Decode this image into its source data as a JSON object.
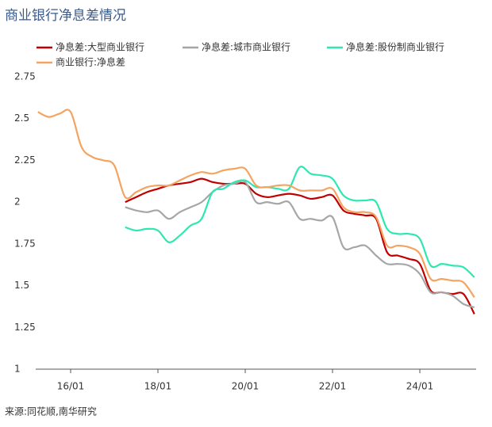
{
  "chart_data": {
    "type": "line",
    "title": "商业银行净息差情况",
    "source": "来源:同花顺,南华研究",
    "x": [
      2015.25,
      2015.5,
      2015.75,
      2016.0,
      2016.25,
      2016.5,
      2016.75,
      2017.0,
      2017.25,
      2017.5,
      2017.75,
      2018.0,
      2018.25,
      2018.5,
      2018.75,
      2019.0,
      2019.25,
      2019.5,
      2019.75,
      2020.0,
      2020.25,
      2020.5,
      2020.75,
      2021.0,
      2021.25,
      2021.5,
      2021.75,
      2022.0,
      2022.25,
      2022.5,
      2022.75,
      2023.0,
      2023.25,
      2023.5,
      2023.75,
      2024.0,
      2024.25,
      2024.5,
      2024.75,
      2025.0,
      2025.25
    ],
    "series": [
      {
        "name": "净息差:大型商业银行",
        "color": "#c00000",
        "values": [
          null,
          null,
          null,
          null,
          null,
          null,
          null,
          null,
          2.0,
          2.03,
          2.06,
          2.08,
          2.1,
          2.11,
          2.12,
          2.14,
          2.12,
          2.11,
          2.11,
          2.11,
          2.05,
          2.03,
          2.04,
          2.05,
          2.04,
          2.02,
          2.03,
          2.04,
          1.95,
          1.93,
          1.92,
          1.9,
          1.7,
          1.68,
          1.66,
          1.63,
          1.47,
          1.46,
          1.45,
          1.45,
          1.33
        ]
      },
      {
        "name": "净息差:城市商业银行",
        "color": "#a6a6a6",
        "values": [
          null,
          null,
          null,
          null,
          null,
          null,
          null,
          null,
          1.97,
          1.95,
          1.94,
          1.95,
          1.9,
          1.94,
          1.97,
          2.0,
          2.06,
          2.1,
          2.11,
          2.12,
          2.0,
          2.0,
          1.99,
          2.0,
          1.9,
          1.9,
          1.89,
          1.91,
          1.73,
          1.73,
          1.74,
          1.68,
          1.63,
          1.63,
          1.62,
          1.57,
          1.46,
          1.46,
          1.44,
          1.39,
          1.37
        ]
      },
      {
        "name": "净息差:股份制商业银行",
        "color": "#2ee8b0",
        "values": [
          null,
          null,
          null,
          null,
          null,
          null,
          null,
          null,
          1.85,
          1.83,
          1.84,
          1.83,
          1.76,
          1.8,
          1.86,
          1.9,
          2.06,
          2.08,
          2.12,
          2.13,
          2.09,
          2.09,
          2.08,
          2.08,
          2.21,
          2.17,
          2.16,
          2.14,
          2.04,
          2.01,
          2.01,
          2.0,
          1.84,
          1.81,
          1.81,
          1.78,
          1.62,
          1.63,
          1.62,
          1.61,
          1.55
        ]
      },
      {
        "name": "商业银行:净息差",
        "color": "#f4a460",
        "values": [
          2.54,
          2.51,
          2.53,
          2.54,
          2.33,
          2.27,
          2.25,
          2.22,
          2.03,
          2.06,
          2.09,
          2.1,
          2.1,
          2.13,
          2.16,
          2.18,
          2.17,
          2.19,
          2.2,
          2.2,
          2.1,
          2.09,
          2.1,
          2.1,
          2.07,
          2.07,
          2.07,
          2.08,
          1.97,
          1.94,
          1.94,
          1.91,
          1.74,
          1.74,
          1.73,
          1.69,
          1.54,
          1.54,
          1.53,
          1.52,
          1.43
        ]
      }
    ],
    "xlim": [
      2015.2,
      2025.29
    ],
    "xticks": [
      {
        "value": 2016,
        "label": "16/01"
      },
      {
        "value": 2018,
        "label": "18/01"
      },
      {
        "value": 2020,
        "label": "20/01"
      },
      {
        "value": 2022,
        "label": "22/01"
      },
      {
        "value": 2024,
        "label": "24/01"
      }
    ],
    "ylim": [
      1,
      2.75
    ],
    "yticks": [
      1,
      1.25,
      1.5,
      1.75,
      2,
      2.25,
      2.5,
      2.75
    ],
    "grid": false
  }
}
